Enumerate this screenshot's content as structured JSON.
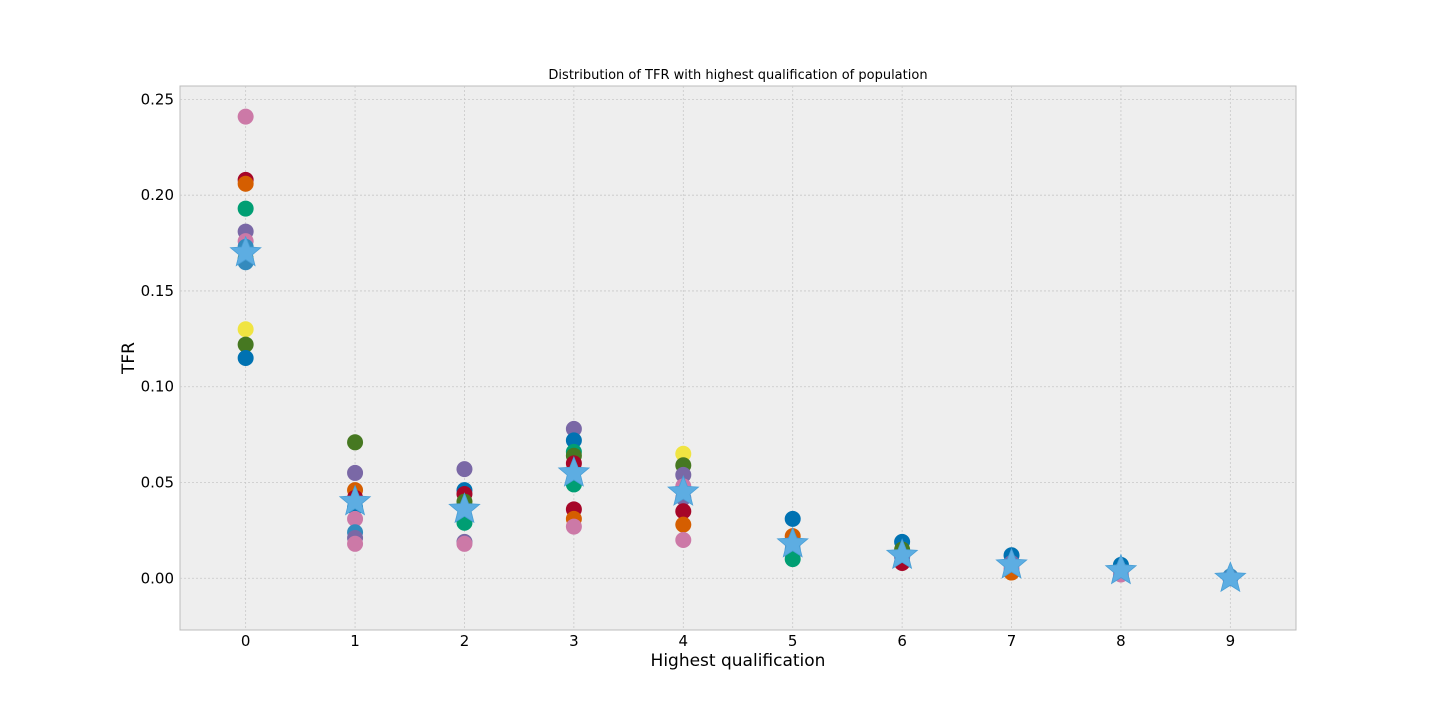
{
  "chart_data": {
    "type": "scatter",
    "title": "Distribution of TFR with highest qualification of population",
    "xlabel": "Highest qualification",
    "ylabel": "TFR",
    "xlim": [
      -0.6,
      9.6
    ],
    "ylim": [
      -0.027,
      0.257
    ],
    "xticks": [
      0,
      1,
      2,
      3,
      4,
      5,
      6,
      7,
      8,
      9
    ],
    "yticks": [
      0.0,
      0.05,
      0.1,
      0.15,
      0.2,
      0.25
    ],
    "ytick_labels": [
      "0.00",
      "0.05",
      "0.10",
      "0.15",
      "0.20",
      "0.25"
    ],
    "grid": true,
    "palette": [
      "#348abd",
      "#a60628",
      "#7a68a6",
      "#467821",
      "#d55e00",
      "#cc79a7",
      "#56b4e9",
      "#009e73",
      "#f0e442",
      "#0072b2"
    ],
    "mean_marker_color": "#5dade2",
    "points": [
      {
        "x": 0,
        "y": 0.241,
        "c": "#cc79a7"
      },
      {
        "x": 0,
        "y": 0.208,
        "c": "#a60628"
      },
      {
        "x": 0,
        "y": 0.206,
        "c": "#d55e00"
      },
      {
        "x": 0,
        "y": 0.193,
        "c": "#009e73"
      },
      {
        "x": 0,
        "y": 0.181,
        "c": "#7a68a6"
      },
      {
        "x": 0,
        "y": 0.176,
        "c": "#cc79a7"
      },
      {
        "x": 0,
        "y": 0.173,
        "c": "#348abd"
      },
      {
        "x": 0,
        "y": 0.167,
        "c": "#467821"
      },
      {
        "x": 0,
        "y": 0.165,
        "c": "#348abd"
      },
      {
        "x": 0,
        "y": 0.13,
        "c": "#f0e442"
      },
      {
        "x": 0,
        "y": 0.122,
        "c": "#467821"
      },
      {
        "x": 0,
        "y": 0.115,
        "c": "#0072b2"
      },
      {
        "x": 1,
        "y": 0.071,
        "c": "#467821"
      },
      {
        "x": 1,
        "y": 0.055,
        "c": "#7a68a6"
      },
      {
        "x": 1,
        "y": 0.046,
        "c": "#d55e00"
      },
      {
        "x": 1,
        "y": 0.042,
        "c": "#a60628"
      },
      {
        "x": 1,
        "y": 0.037,
        "c": "#0072b2"
      },
      {
        "x": 1,
        "y": 0.031,
        "c": "#cc79a7"
      },
      {
        "x": 1,
        "y": 0.024,
        "c": "#348abd"
      },
      {
        "x": 1,
        "y": 0.021,
        "c": "#7a68a6"
      },
      {
        "x": 1,
        "y": 0.018,
        "c": "#cc79a7"
      },
      {
        "x": 2,
        "y": 0.057,
        "c": "#7a68a6"
      },
      {
        "x": 2,
        "y": 0.046,
        "c": "#0072b2"
      },
      {
        "x": 2,
        "y": 0.044,
        "c": "#a60628"
      },
      {
        "x": 2,
        "y": 0.04,
        "c": "#467821"
      },
      {
        "x": 2,
        "y": 0.032,
        "c": "#d55e00"
      },
      {
        "x": 2,
        "y": 0.029,
        "c": "#009e73"
      },
      {
        "x": 2,
        "y": 0.019,
        "c": "#7a68a6"
      },
      {
        "x": 2,
        "y": 0.018,
        "c": "#cc79a7"
      },
      {
        "x": 3,
        "y": 0.078,
        "c": "#7a68a6"
      },
      {
        "x": 3,
        "y": 0.072,
        "c": "#0072b2"
      },
      {
        "x": 3,
        "y": 0.066,
        "c": "#009e73"
      },
      {
        "x": 3,
        "y": 0.064,
        "c": "#467821"
      },
      {
        "x": 3,
        "y": 0.06,
        "c": "#a60628"
      },
      {
        "x": 3,
        "y": 0.049,
        "c": "#009e73"
      },
      {
        "x": 3,
        "y": 0.036,
        "c": "#a60628"
      },
      {
        "x": 3,
        "y": 0.031,
        "c": "#d55e00"
      },
      {
        "x": 3,
        "y": 0.027,
        "c": "#cc79a7"
      },
      {
        "x": 4,
        "y": 0.065,
        "c": "#f0e442"
      },
      {
        "x": 4,
        "y": 0.059,
        "c": "#467821"
      },
      {
        "x": 4,
        "y": 0.054,
        "c": "#7a68a6"
      },
      {
        "x": 4,
        "y": 0.048,
        "c": "#cc79a7"
      },
      {
        "x": 4,
        "y": 0.042,
        "c": "#7a68a6"
      },
      {
        "x": 4,
        "y": 0.035,
        "c": "#a60628"
      },
      {
        "x": 4,
        "y": 0.028,
        "c": "#d55e00"
      },
      {
        "x": 4,
        "y": 0.02,
        "c": "#cc79a7"
      },
      {
        "x": 5,
        "y": 0.031,
        "c": "#0072b2"
      },
      {
        "x": 5,
        "y": 0.022,
        "c": "#d55e00"
      },
      {
        "x": 5,
        "y": 0.018,
        "c": "#7a68a6"
      },
      {
        "x": 5,
        "y": 0.015,
        "c": "#348abd"
      },
      {
        "x": 5,
        "y": 0.012,
        "c": "#cc79a7"
      },
      {
        "x": 5,
        "y": 0.01,
        "c": "#009e73"
      },
      {
        "x": 6,
        "y": 0.019,
        "c": "#0072b2"
      },
      {
        "x": 6,
        "y": 0.015,
        "c": "#467821"
      },
      {
        "x": 6,
        "y": 0.011,
        "c": "#7a68a6"
      },
      {
        "x": 6,
        "y": 0.008,
        "c": "#a60628"
      },
      {
        "x": 7,
        "y": 0.012,
        "c": "#0072b2"
      },
      {
        "x": 7,
        "y": 0.008,
        "c": "#7a68a6"
      },
      {
        "x": 7,
        "y": 0.005,
        "c": "#cc79a7"
      },
      {
        "x": 7,
        "y": 0.003,
        "c": "#d55e00"
      },
      {
        "x": 8,
        "y": 0.007,
        "c": "#0072b2"
      },
      {
        "x": 8,
        "y": 0.004,
        "c": "#7a68a6"
      },
      {
        "x": 8,
        "y": 0.002,
        "c": "#cc79a7"
      },
      {
        "x": 9,
        "y": 0.001,
        "c": "#348abd"
      },
      {
        "x": 9,
        "y": 0.0,
        "c": "#7a68a6"
      }
    ],
    "means": [
      {
        "x": 0,
        "y": 0.17
      },
      {
        "x": 1,
        "y": 0.04
      },
      {
        "x": 2,
        "y": 0.036
      },
      {
        "x": 3,
        "y": 0.055
      },
      {
        "x": 4,
        "y": 0.045
      },
      {
        "x": 5,
        "y": 0.018
      },
      {
        "x": 6,
        "y": 0.012
      },
      {
        "x": 7,
        "y": 0.007
      },
      {
        "x": 8,
        "y": 0.004
      },
      {
        "x": 9,
        "y": 0.0
      }
    ]
  }
}
